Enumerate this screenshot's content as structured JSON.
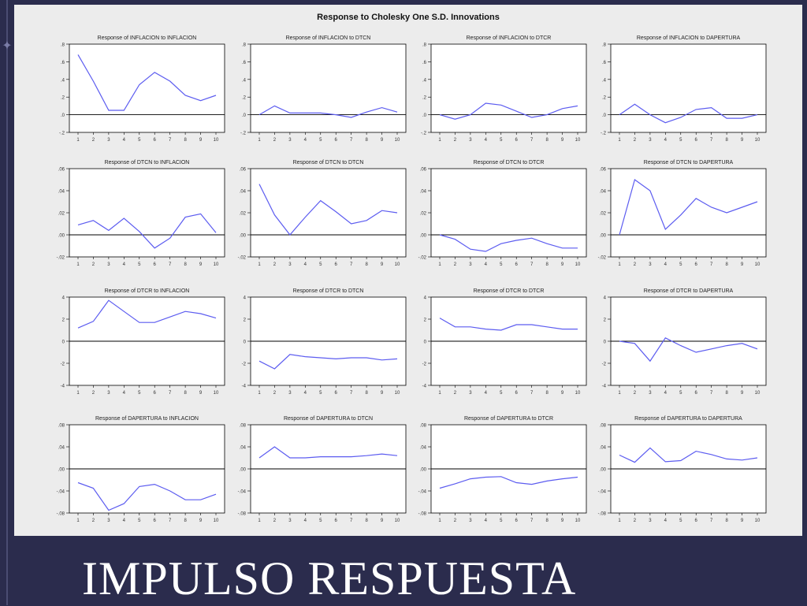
{
  "slide": {
    "title": "IMPULSO RESPUESTA"
  },
  "figure": {
    "title": "Response to Cholesky One S.D. Innovations"
  },
  "chart_data": [
    {
      "type": "line",
      "title": "Response of INFLACION to INFLACION",
      "x": [
        1,
        2,
        3,
        4,
        5,
        6,
        7,
        8,
        9,
        10
      ],
      "yticks": [
        ".8",
        ".6",
        ".4",
        ".2",
        ".0",
        "-.2"
      ],
      "ylim": [
        -0.2,
        0.8
      ],
      "y": [
        0.68,
        0.38,
        0.05,
        0.05,
        0.34,
        0.48,
        0.38,
        0.22,
        0.16,
        0.22
      ]
    },
    {
      "type": "line",
      "title": "Response of INFLACION to DTCN",
      "x": [
        1,
        2,
        3,
        4,
        5,
        6,
        7,
        8,
        9,
        10
      ],
      "yticks": [
        ".8",
        ".6",
        ".4",
        ".2",
        ".0",
        "-.2"
      ],
      "ylim": [
        -0.2,
        0.8
      ],
      "y": [
        0.0,
        0.1,
        0.02,
        0.02,
        0.02,
        0.0,
        -0.03,
        0.03,
        0.08,
        0.03
      ]
    },
    {
      "type": "line",
      "title": "Response of INFLACION to DTCR",
      "x": [
        1,
        2,
        3,
        4,
        5,
        6,
        7,
        8,
        9,
        10
      ],
      "yticks": [
        ".8",
        ".6",
        ".4",
        ".2",
        ".0",
        "-.2"
      ],
      "ylim": [
        -0.2,
        0.8
      ],
      "y": [
        0.0,
        -0.05,
        0.0,
        0.13,
        0.11,
        0.04,
        -0.03,
        0.0,
        0.07,
        0.1
      ]
    },
    {
      "type": "line",
      "title": "Response of INFLACION to DAPERTURA",
      "x": [
        1,
        2,
        3,
        4,
        5,
        6,
        7,
        8,
        9,
        10
      ],
      "yticks": [
        ".8",
        ".6",
        ".4",
        ".2",
        ".0",
        "-.2"
      ],
      "ylim": [
        -0.2,
        0.8
      ],
      "y": [
        0.0,
        0.12,
        0.0,
        -0.09,
        -0.03,
        0.06,
        0.08,
        -0.04,
        -0.04,
        0.0
      ]
    },
    {
      "type": "line",
      "title": "Response of DTCN to INFLACION",
      "x": [
        1,
        2,
        3,
        4,
        5,
        6,
        7,
        8,
        9,
        10
      ],
      "yticks": [
        ".06",
        ".04",
        ".02",
        ".00",
        "-.02"
      ],
      "ylim": [
        -0.02,
        0.06
      ],
      "y": [
        0.009,
        0.013,
        0.004,
        0.015,
        0.003,
        -0.012,
        -0.003,
        0.016,
        0.019,
        0.002
      ]
    },
    {
      "type": "line",
      "title": "Response of DTCN to DTCN",
      "x": [
        1,
        2,
        3,
        4,
        5,
        6,
        7,
        8,
        9,
        10
      ],
      "yticks": [
        ".06",
        ".04",
        ".02",
        ".00",
        "-.02"
      ],
      "ylim": [
        -0.02,
        0.06
      ],
      "y": [
        0.046,
        0.018,
        0.0,
        0.016,
        0.031,
        0.021,
        0.01,
        0.013,
        0.022,
        0.02
      ]
    },
    {
      "type": "line",
      "title": "Response of DTCN to DTCR",
      "x": [
        1,
        2,
        3,
        4,
        5,
        6,
        7,
        8,
        9,
        10
      ],
      "yticks": [
        ".06",
        ".04",
        ".02",
        ".00",
        "-.02"
      ],
      "ylim": [
        -0.02,
        0.06
      ],
      "y": [
        0.0,
        -0.004,
        -0.013,
        -0.015,
        -0.008,
        -0.005,
        -0.003,
        -0.008,
        -0.012,
        -0.012
      ]
    },
    {
      "type": "line",
      "title": "Response of DTCN to DAPERTURA",
      "x": [
        1,
        2,
        3,
        4,
        5,
        6,
        7,
        8,
        9,
        10
      ],
      "yticks": [
        ".06",
        ".04",
        ".02",
        ".00",
        "-.02"
      ],
      "ylim": [
        -0.02,
        0.06
      ],
      "y": [
        0.0,
        0.05,
        0.04,
        0.005,
        0.018,
        0.033,
        0.025,
        0.02,
        0.025,
        0.03
      ]
    },
    {
      "type": "line",
      "title": "Response of DTCR to INFLACION",
      "x": [
        1,
        2,
        3,
        4,
        5,
        6,
        7,
        8,
        9,
        10
      ],
      "yticks": [
        "4",
        "2",
        "0",
        "-2",
        "-4"
      ],
      "ylim": [
        -4,
        4
      ],
      "y": [
        1.2,
        1.8,
        3.7,
        2.7,
        1.7,
        1.7,
        2.2,
        2.7,
        2.5,
        2.1
      ]
    },
    {
      "type": "line",
      "title": "Response of DTCR to DTCN",
      "x": [
        1,
        2,
        3,
        4,
        5,
        6,
        7,
        8,
        9,
        10
      ],
      "yticks": [
        "4",
        "2",
        "0",
        "-2",
        "-4"
      ],
      "ylim": [
        -4,
        4
      ],
      "y": [
        -1.8,
        -2.5,
        -1.2,
        -1.4,
        -1.5,
        -1.6,
        -1.5,
        -1.5,
        -1.7,
        -1.6
      ]
    },
    {
      "type": "line",
      "title": "Response of DTCR to DTCR",
      "x": [
        1,
        2,
        3,
        4,
        5,
        6,
        7,
        8,
        9,
        10
      ],
      "yticks": [
        "4",
        "2",
        "0",
        "-2",
        "-4"
      ],
      "ylim": [
        -4,
        4
      ],
      "y": [
        2.1,
        1.3,
        1.3,
        1.1,
        1.0,
        1.5,
        1.5,
        1.3,
        1.1,
        1.1
      ]
    },
    {
      "type": "line",
      "title": "Response of DTCR to DAPERTURA",
      "x": [
        1,
        2,
        3,
        4,
        5,
        6,
        7,
        8,
        9,
        10
      ],
      "yticks": [
        "4",
        "2",
        "0",
        "-2",
        "-4"
      ],
      "ylim": [
        -4,
        4
      ],
      "y": [
        0.0,
        -0.2,
        -1.8,
        0.3,
        -0.4,
        -1.0,
        -0.7,
        -0.4,
        -0.2,
        -0.7
      ]
    },
    {
      "type": "line",
      "title": "Response of DAPERTURA to INFLACION",
      "x": [
        1,
        2,
        3,
        4,
        5,
        6,
        7,
        8,
        9,
        10
      ],
      "yticks": [
        ".08",
        ".04",
        ".00",
        "-.04",
        "-.08"
      ],
      "ylim": [
        -0.08,
        0.08
      ],
      "y": [
        -0.025,
        -0.035,
        -0.075,
        -0.063,
        -0.032,
        -0.028,
        -0.04,
        -0.056,
        -0.056,
        -0.046
      ]
    },
    {
      "type": "line",
      "title": "Response of DAPERTURA to DTCN",
      "x": [
        1,
        2,
        3,
        4,
        5,
        6,
        7,
        8,
        9,
        10
      ],
      "yticks": [
        ".08",
        ".04",
        ".00",
        "-.04",
        "-.08"
      ],
      "ylim": [
        -0.08,
        0.08
      ],
      "y": [
        0.02,
        0.04,
        0.02,
        0.02,
        0.022,
        0.022,
        0.022,
        0.024,
        0.027,
        0.024
      ]
    },
    {
      "type": "line",
      "title": "Response of DAPERTURA to DTCR",
      "x": [
        1,
        2,
        3,
        4,
        5,
        6,
        7,
        8,
        9,
        10
      ],
      "yticks": [
        ".08",
        ".04",
        ".00",
        "-.04",
        "-.08"
      ],
      "ylim": [
        -0.08,
        0.08
      ],
      "y": [
        -0.035,
        -0.027,
        -0.018,
        -0.015,
        -0.014,
        -0.025,
        -0.028,
        -0.022,
        -0.018,
        -0.015
      ]
    },
    {
      "type": "line",
      "title": "Response of DAPERTURA to DAPERTURA",
      "x": [
        1,
        2,
        3,
        4,
        5,
        6,
        7,
        8,
        9,
        10
      ],
      "yticks": [
        ".08",
        ".04",
        ".00",
        "-.04",
        "-.08"
      ],
      "ylim": [
        -0.08,
        0.08
      ],
      "y": [
        0.025,
        0.012,
        0.038,
        0.013,
        0.015,
        0.032,
        0.026,
        0.018,
        0.016,
        0.02
      ]
    }
  ],
  "colors": {
    "line": "#5c5cf0",
    "axis": "#000000",
    "background": "#ffffff",
    "figure": "#ececec",
    "slide": "#2b2c4d"
  }
}
